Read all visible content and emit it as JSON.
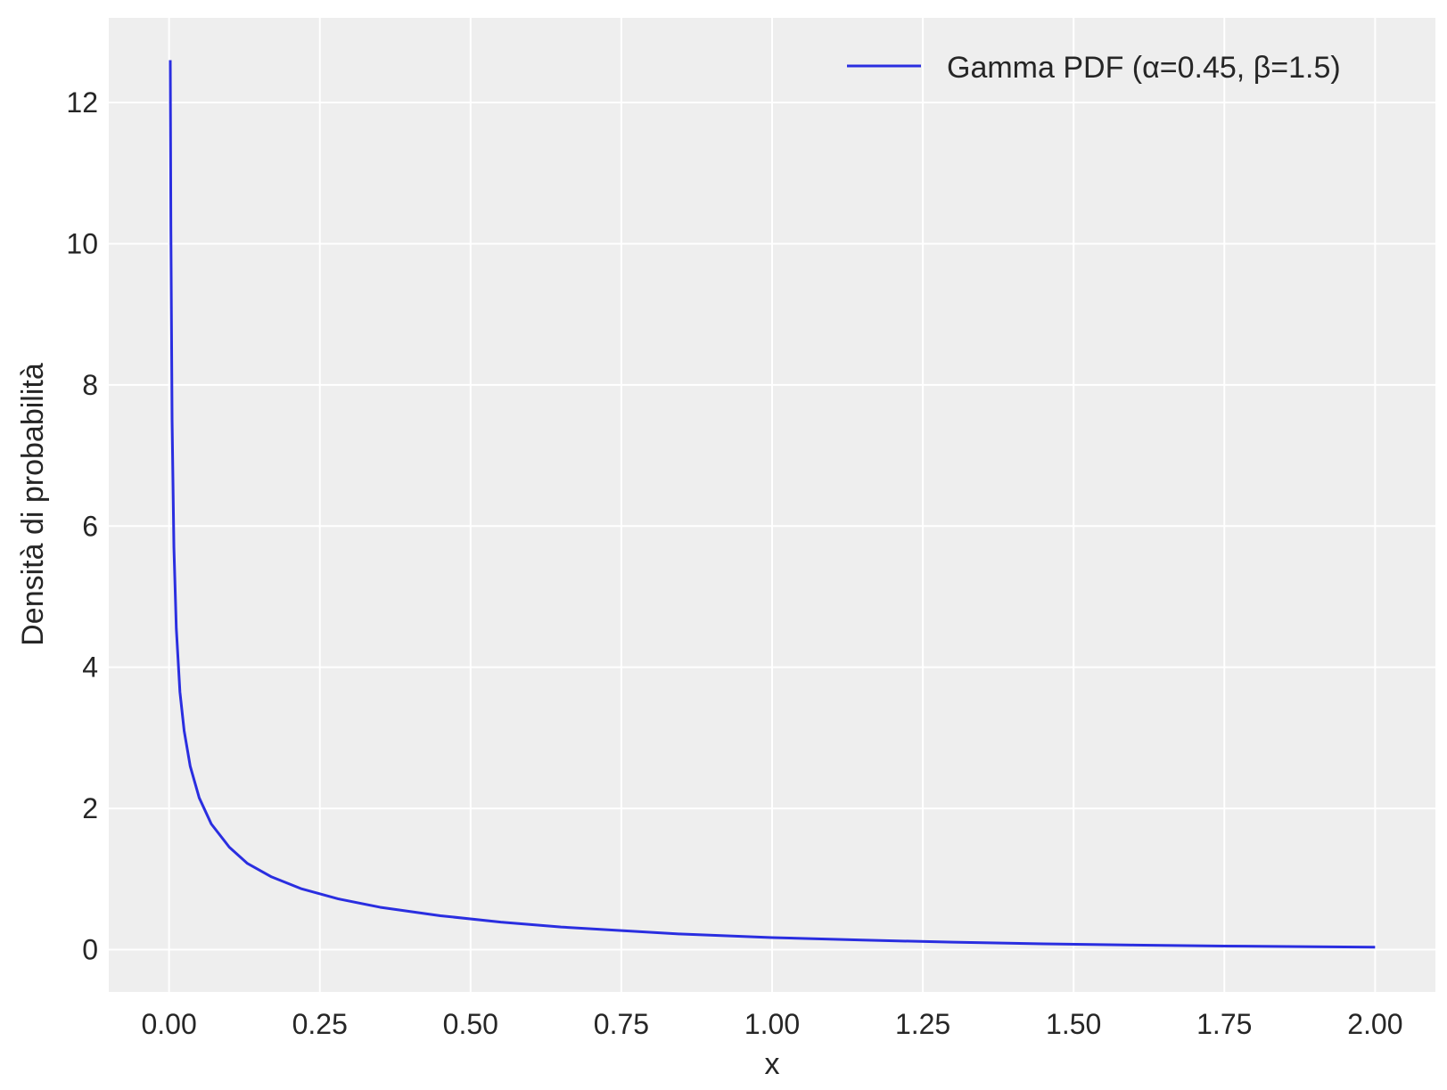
{
  "chart_data": {
    "type": "line",
    "title": "",
    "xlabel": "x",
    "ylabel": "Densità di probabilità",
    "xlim": [
      -0.1,
      2.1
    ],
    "ylim": [
      -0.6,
      13.2
    ],
    "x_ticks": [
      0.0,
      0.25,
      0.5,
      0.75,
      1.0,
      1.25,
      1.5,
      1.75,
      2.0
    ],
    "x_tick_labels": [
      "0.00",
      "0.25",
      "0.50",
      "0.75",
      "1.00",
      "1.25",
      "1.50",
      "1.75",
      "2.00"
    ],
    "y_ticks": [
      0,
      2,
      4,
      6,
      8,
      10,
      12
    ],
    "y_tick_labels": [
      "0",
      "2",
      "4",
      "6",
      "8",
      "10",
      "12"
    ],
    "grid": true,
    "background_color": "#eeeeee",
    "grid_color": "#ffffff",
    "legend_position": "top-right",
    "series": [
      {
        "name": "Gamma PDF (α=0.45, β=1.5)",
        "color": "#2a2ee0",
        "points": [
          [
            0.002,
            12.6
          ],
          [
            0.003,
            10.2
          ],
          [
            0.005,
            7.5
          ],
          [
            0.008,
            5.7
          ],
          [
            0.012,
            4.55
          ],
          [
            0.018,
            3.65
          ],
          [
            0.025,
            3.1
          ],
          [
            0.035,
            2.6
          ],
          [
            0.05,
            2.15
          ],
          [
            0.07,
            1.78
          ],
          [
            0.1,
            1.45
          ],
          [
            0.13,
            1.22
          ],
          [
            0.17,
            1.03
          ],
          [
            0.22,
            0.86
          ],
          [
            0.28,
            0.72
          ],
          [
            0.35,
            0.6
          ],
          [
            0.45,
            0.48
          ],
          [
            0.55,
            0.39
          ],
          [
            0.65,
            0.32
          ],
          [
            0.75,
            0.27
          ],
          [
            0.85,
            0.22
          ],
          [
            1.0,
            0.17
          ],
          [
            1.15,
            0.135
          ],
          [
            1.3,
            0.105
          ],
          [
            1.45,
            0.082
          ],
          [
            1.6,
            0.065
          ],
          [
            1.75,
            0.051
          ],
          [
            1.9,
            0.04
          ],
          [
            2.0,
            0.034
          ]
        ]
      }
    ]
  }
}
